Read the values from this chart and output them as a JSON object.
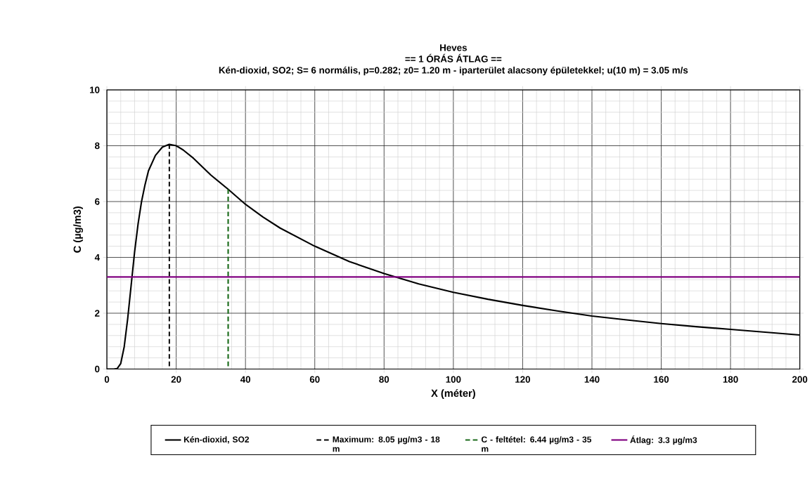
{
  "chart_data": {
    "type": "line",
    "title": "Heves",
    "subtitle": "== 1 ÓRÁS ÁTLAG ==",
    "annotations": [
      "Kén-dioxid, SO2; S= 6 normális, p=0.282; z0= 1.20 m - iparterület alacsony épületekkel; u(10 m) = 3.05 m/s"
    ],
    "xlabel": "X (méter)",
    "ylabel": "C (µg/m3)",
    "xlim": [
      0,
      200
    ],
    "ylim": [
      0,
      10
    ],
    "xticks": [
      0,
      20,
      40,
      60,
      80,
      100,
      120,
      140,
      160,
      180,
      200
    ],
    "yticks": [
      0,
      2,
      4,
      6,
      8,
      10
    ],
    "grid": true,
    "legend": "bottom",
    "marker": "none",
    "series": [
      {
        "name": "Kén-dioxid, SO2",
        "color": "#000000",
        "line_style": "solid",
        "x": [
          0,
          2,
          3,
          4,
          5,
          6,
          7,
          8,
          9,
          10,
          11,
          12,
          14,
          16,
          18,
          20,
          22,
          25,
          30,
          35,
          40,
          45,
          50,
          60,
          70,
          80,
          90,
          100,
          110,
          120,
          130,
          140,
          150,
          160,
          170,
          180,
          190,
          200
        ],
        "values": [
          0,
          0,
          0.02,
          0.2,
          0.8,
          1.8,
          3.0,
          4.2,
          5.2,
          6.0,
          6.6,
          7.1,
          7.65,
          7.95,
          8.05,
          8.0,
          7.85,
          7.55,
          6.95,
          6.44,
          5.9,
          5.45,
          5.05,
          4.4,
          3.85,
          3.42,
          3.05,
          2.75,
          2.5,
          2.28,
          2.08,
          1.9,
          1.76,
          1.63,
          1.52,
          1.42,
          1.32,
          1.22
        ]
      },
      {
        "name": "Maximum: 8.05 µg/m3 - 18 m",
        "color": "#000000",
        "line_style": "dashed",
        "x": [
          18,
          18
        ],
        "values": [
          0,
          8.05
        ]
      },
      {
        "name": "C - feltétel: 6.44 µg/m3 - 35 m",
        "color": "#1a6b1a",
        "line_style": "dashed",
        "x": [
          35,
          35
        ],
        "values": [
          0,
          6.44
        ]
      },
      {
        "name": "Átlag: 3.3 µg/m3",
        "color": "#800080",
        "line_style": "solid",
        "x": [
          0,
          200
        ],
        "values": [
          3.3,
          3.3
        ]
      }
    ]
  }
}
